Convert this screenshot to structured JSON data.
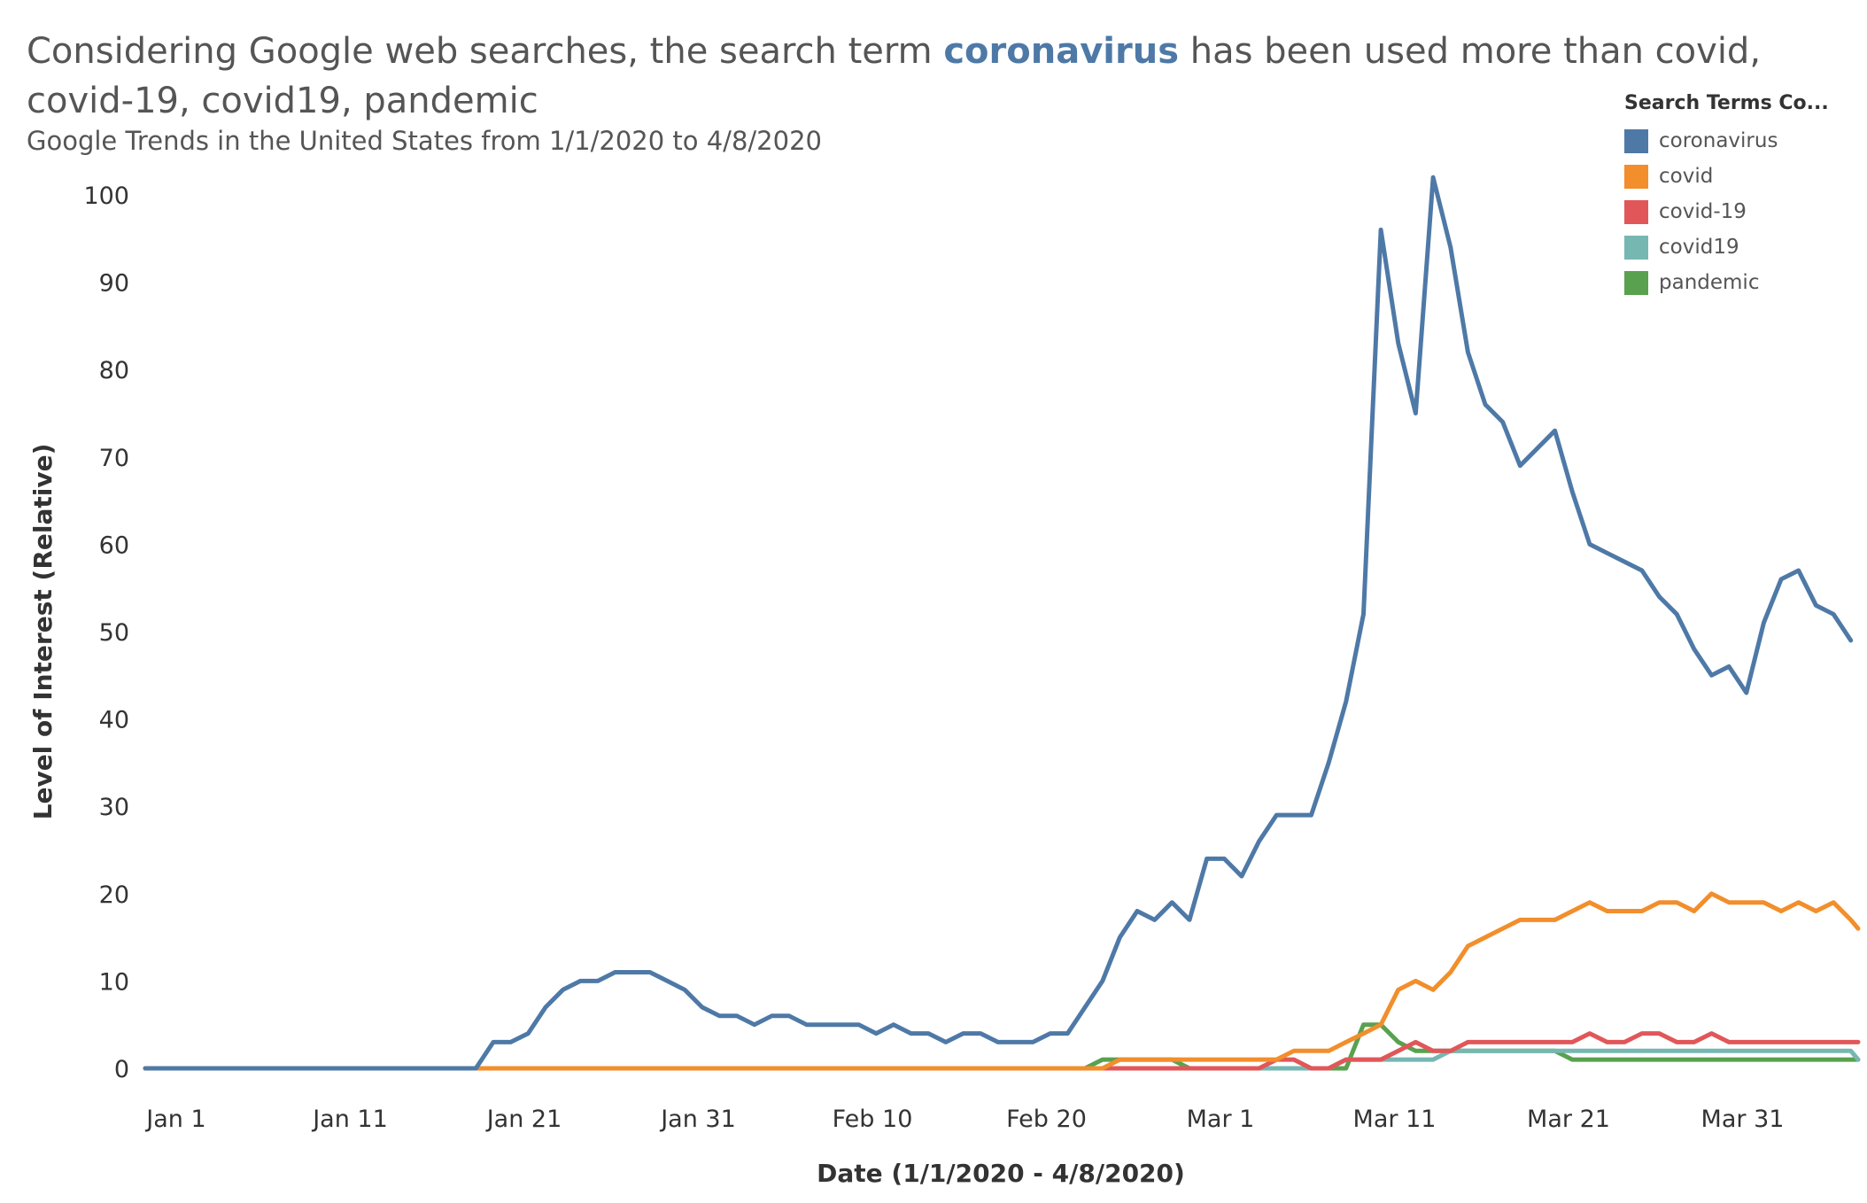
{
  "header": {
    "title_pre": "Considering Google web searches, the search term",
    "title_highlight": "coronavirus",
    "title_post": "has been used more than covid, covid-19, covid19, pandemic",
    "subtitle": "Google Trends in the United States from 1/1/2020 to 4/8/2020"
  },
  "legend": {
    "title": "Search Terms Co...",
    "items": [
      {
        "label": "coronavirus",
        "color": "#4e79a7"
      },
      {
        "label": "covid",
        "color": "#f28e2b"
      },
      {
        "label": "covid-19",
        "color": "#e15759"
      },
      {
        "label": "covid19",
        "color": "#76b7b2"
      },
      {
        "label": "pandemic",
        "color": "#59a14f"
      }
    ]
  },
  "chart_data": {
    "type": "line",
    "xlabel": "Date (1/1/2020 - 4/8/2020)",
    "ylabel": "Level of Interest (Relative)",
    "x_start": "2020-01-01",
    "x_end": "2020-04-08",
    "x_ticks": [
      {
        "label": "Jan 1",
        "date": "2020-01-01"
      },
      {
        "label": "Jan 11",
        "date": "2020-01-11"
      },
      {
        "label": "Jan 21",
        "date": "2020-01-21"
      },
      {
        "label": "Jan 31",
        "date": "2020-01-31"
      },
      {
        "label": "Feb 10",
        "date": "2020-02-10"
      },
      {
        "label": "Feb 20",
        "date": "2020-02-20"
      },
      {
        "label": "Mar 1",
        "date": "2020-03-01"
      },
      {
        "label": "Mar 11",
        "date": "2020-03-11"
      },
      {
        "label": "Mar 21",
        "date": "2020-03-21"
      },
      {
        "label": "Mar 31",
        "date": "2020-03-31"
      }
    ],
    "y_ticks": [
      0,
      10,
      20,
      30,
      40,
      50,
      60,
      70,
      80,
      90,
      100
    ],
    "ylim": [
      0,
      100
    ],
    "grid": false,
    "legend_position": "top-right",
    "series": [
      {
        "name": "coronavirus",
        "color": "#4e79a7",
        "values": [
          0,
          0,
          0,
          0,
          0,
          0,
          0,
          0,
          0,
          0,
          0,
          0,
          0,
          0,
          0,
          0,
          0,
          0,
          0,
          0,
          3,
          3,
          4,
          7,
          9,
          10,
          10,
          11,
          11,
          11,
          10,
          9,
          7,
          6,
          6,
          5,
          6,
          6,
          5,
          5,
          5,
          5,
          4,
          5,
          4,
          4,
          3,
          4,
          4,
          3,
          3,
          3,
          4,
          4,
          7,
          10,
          15,
          18,
          17,
          19,
          17,
          24,
          24,
          22,
          26,
          29,
          29,
          29,
          35,
          42,
          52,
          96,
          83,
          75,
          102,
          94,
          82,
          76,
          74,
          69,
          71,
          73,
          66,
          60,
          59,
          58,
          57,
          54,
          52,
          48,
          45,
          46,
          43,
          51,
          56,
          57,
          53,
          52,
          49
        ]
      },
      {
        "name": "covid",
        "color": "#f28e2b",
        "values": [
          0,
          0,
          0,
          0,
          0,
          0,
          0,
          0,
          0,
          0,
          0,
          0,
          0,
          0,
          0,
          0,
          0,
          0,
          0,
          0,
          0,
          0,
          0,
          0,
          0,
          0,
          0,
          0,
          0,
          0,
          0,
          0,
          0,
          0,
          0,
          0,
          0,
          0,
          0,
          0,
          0,
          0,
          0,
          0,
          0,
          0,
          0,
          0,
          0,
          0,
          0,
          0,
          0,
          0,
          0,
          0,
          1,
          1,
          1,
          1,
          1,
          1,
          1,
          1,
          1,
          1,
          2,
          2,
          2,
          3,
          4,
          5,
          9,
          10,
          9,
          11,
          14,
          15,
          16,
          17,
          17,
          17,
          18,
          19,
          18,
          18,
          18,
          19,
          19,
          18,
          20,
          19,
          19,
          19,
          18,
          19,
          18,
          19,
          17,
          16
        ]
      },
      {
        "name": "covid-19",
        "color": "#e15759",
        "values": [
          0,
          0,
          0,
          0,
          0,
          0,
          0,
          0,
          0,
          0,
          0,
          0,
          0,
          0,
          0,
          0,
          0,
          0,
          0,
          0,
          0,
          0,
          0,
          0,
          0,
          0,
          0,
          0,
          0,
          0,
          0,
          0,
          0,
          0,
          0,
          0,
          0,
          0,
          0,
          0,
          0,
          0,
          0,
          0,
          0,
          0,
          0,
          0,
          0,
          0,
          0,
          0,
          0,
          0,
          0,
          0,
          0,
          0,
          0,
          0,
          0,
          0,
          0,
          0,
          0,
          1,
          1,
          0,
          0,
          1,
          1,
          1,
          2,
          3,
          2,
          2,
          3,
          3,
          3,
          3,
          3,
          3,
          3,
          4,
          3,
          3,
          4,
          4,
          3,
          3,
          4,
          3,
          3,
          3,
          3,
          3,
          3,
          3,
          3,
          3
        ]
      },
      {
        "name": "covid19",
        "color": "#76b7b2",
        "values": [
          0,
          0,
          0,
          0,
          0,
          0,
          0,
          0,
          0,
          0,
          0,
          0,
          0,
          0,
          0,
          0,
          0,
          0,
          0,
          0,
          0,
          0,
          0,
          0,
          0,
          0,
          0,
          0,
          0,
          0,
          0,
          0,
          0,
          0,
          0,
          0,
          0,
          0,
          0,
          0,
          0,
          0,
          0,
          0,
          0,
          0,
          0,
          0,
          0,
          0,
          0,
          0,
          0,
          0,
          0,
          0,
          0,
          0,
          0,
          0,
          0,
          0,
          0,
          0,
          0,
          0,
          0,
          0,
          0,
          1,
          1,
          1,
          1,
          1,
          1,
          2,
          2,
          2,
          2,
          2,
          2,
          2,
          2,
          2,
          2,
          2,
          2,
          2,
          2,
          2,
          2,
          2,
          2,
          2,
          2,
          2,
          2,
          2,
          2,
          1
        ]
      },
      {
        "name": "pandemic",
        "color": "#59a14f",
        "values": [
          0,
          0,
          0,
          0,
          0,
          0,
          0,
          0,
          0,
          0,
          0,
          0,
          0,
          0,
          0,
          0,
          0,
          0,
          0,
          0,
          0,
          0,
          0,
          0,
          0,
          0,
          0,
          0,
          0,
          0,
          0,
          0,
          0,
          0,
          0,
          0,
          0,
          0,
          0,
          0,
          0,
          0,
          0,
          0,
          0,
          0,
          0,
          0,
          0,
          0,
          0,
          0,
          0,
          0,
          0,
          1,
          1,
          1,
          1,
          1,
          0,
          0,
          0,
          0,
          0,
          0,
          0,
          0,
          0,
          0,
          5,
          5,
          3,
          2,
          2,
          2,
          2,
          2,
          2,
          2,
          2,
          2,
          1,
          1,
          1,
          1,
          1,
          1,
          1,
          1,
          1,
          1,
          1,
          1,
          1,
          1,
          1,
          1,
          1,
          1
        ]
      }
    ]
  }
}
